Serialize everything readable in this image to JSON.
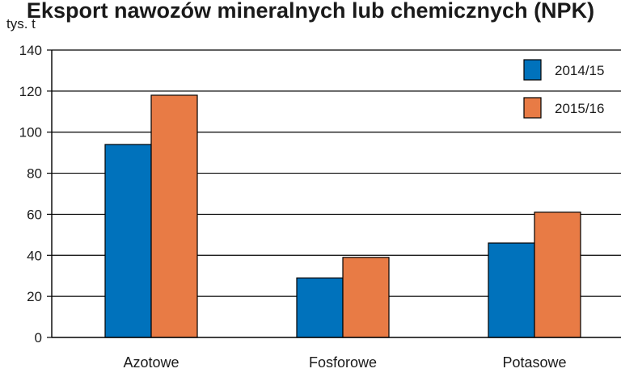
{
  "chart_data": {
    "type": "bar",
    "title": "Eksport nawozów mineralnych lub chemicznych (NPK)",
    "unit_label": "tys. t",
    "categories": [
      "Azotowe",
      "Fosforowe",
      "Potasowe"
    ],
    "series": [
      {
        "name": "2014/15",
        "values": [
          94,
          29,
          46
        ],
        "color": "#0072bc"
      },
      {
        "name": "2015/16",
        "values": [
          118,
          39,
          61
        ],
        "color": "#e87b45"
      }
    ],
    "ylim": [
      0,
      140
    ],
    "yticks": [
      0,
      20,
      40,
      60,
      80,
      100,
      120,
      140
    ],
    "grid": true,
    "legend": "top-right"
  }
}
